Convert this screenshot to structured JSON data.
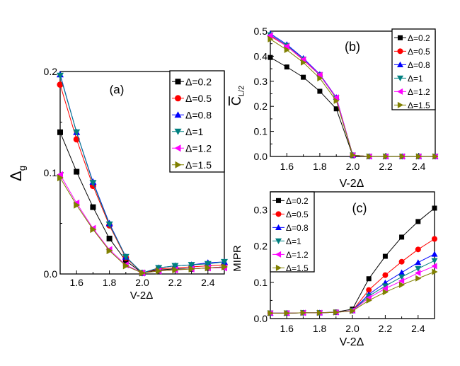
{
  "chart_data": [
    {
      "type": "line",
      "panel_label": "(a)",
      "xlabel": "V-2Δ",
      "ylabel": "Δ",
      "ylabel_sub": "g",
      "xlim": [
        1.5,
        2.5
      ],
      "ylim": [
        0,
        0.2
      ],
      "xticks": [
        "1.6",
        "1.8",
        "2.0",
        "2.2",
        "2.4"
      ],
      "yticks": [
        "0.0",
        "0.1",
        "0.2"
      ],
      "legend_position": "top-right",
      "x": [
        1.5,
        1.6,
        1.7,
        1.8,
        1.9,
        2.0,
        2.1,
        2.2,
        2.3,
        2.4,
        2.5
      ],
      "series": [
        {
          "name": "Δ=0.2",
          "color": "#000000",
          "marker": "square",
          "values": [
            0.14,
            0.101,
            0.066,
            0.035,
            0.013,
            0.001,
            0.004,
            0.005,
            0.005,
            0.006,
            0.007
          ]
        },
        {
          "name": "Δ=0.5",
          "color": "#ff0000",
          "marker": "circle",
          "values": [
            0.187,
            0.133,
            0.087,
            0.048,
            0.016,
            0.001,
            0.005,
            0.006,
            0.007,
            0.008,
            0.009
          ]
        },
        {
          "name": "Δ=0.8",
          "color": "#0000ff",
          "marker": "triangle-up",
          "values": [
            0.197,
            0.14,
            0.091,
            0.05,
            0.017,
            0.001,
            0.006,
            0.008,
            0.009,
            0.011,
            0.012
          ]
        },
        {
          "name": "Δ=1",
          "color": "#008080",
          "marker": "triangle-down",
          "values": [
            0.196,
            0.14,
            0.09,
            0.049,
            0.017,
            0.001,
            0.006,
            0.008,
            0.009,
            0.01,
            0.012
          ]
        },
        {
          "name": "Δ=1.2",
          "color": "#ff00ff",
          "marker": "triangle-left",
          "values": [
            0.098,
            0.07,
            0.045,
            0.024,
            0.009,
            0.001,
            0.003,
            0.004,
            0.005,
            0.006,
            0.006
          ]
        },
        {
          "name": "Δ=1.5",
          "color": "#808000",
          "marker": "triangle-right",
          "values": [
            0.095,
            0.068,
            0.044,
            0.023,
            0.008,
            0.001,
            0.003,
            0.004,
            0.005,
            0.006,
            0.007
          ]
        }
      ]
    },
    {
      "type": "line",
      "panel_label": "(b)",
      "xlabel": "V-2Δ",
      "ylabel": "C",
      "ylabel_sub": "L/2",
      "xlim": [
        1.5,
        2.5
      ],
      "ylim": [
        0,
        0.5
      ],
      "xticks": [
        "1.6",
        "1.8",
        "2.0",
        "2.2",
        "2.4"
      ],
      "yticks": [
        "0.0",
        "0.1",
        "0.2",
        "0.3",
        "0.4",
        "0.5"
      ],
      "legend_position": "top-right",
      "x": [
        1.5,
        1.6,
        1.7,
        1.8,
        1.9,
        2.0,
        2.1,
        2.2,
        2.3,
        2.4,
        2.5
      ],
      "series": [
        {
          "name": "Δ=0.2",
          "color": "#000000",
          "marker": "square",
          "values": [
            0.395,
            0.357,
            0.316,
            0.26,
            0.19,
            0.003,
            0,
            0,
            0,
            0,
            0
          ]
        },
        {
          "name": "Δ=0.5",
          "color": "#ff0000",
          "marker": "circle",
          "values": [
            0.48,
            0.44,
            0.385,
            0.325,
            0.232,
            0.005,
            0,
            0,
            0,
            0,
            0
          ]
        },
        {
          "name": "Δ=0.8",
          "color": "#0000ff",
          "marker": "triangle-up",
          "values": [
            0.49,
            0.447,
            0.392,
            0.328,
            0.236,
            0.005,
            0,
            0,
            0,
            0,
            0
          ]
        },
        {
          "name": "Δ=1",
          "color": "#008080",
          "marker": "triangle-down",
          "values": [
            0.485,
            0.443,
            0.388,
            0.325,
            0.233,
            0.005,
            0,
            0,
            0,
            0,
            0
          ]
        },
        {
          "name": "Δ=1.2",
          "color": "#ff00ff",
          "marker": "triangle-left",
          "values": [
            0.483,
            0.44,
            0.387,
            0.326,
            0.235,
            0.005,
            0,
            0,
            0,
            0,
            0
          ]
        },
        {
          "name": "Δ=1.5",
          "color": "#808000",
          "marker": "triangle-right",
          "values": [
            0.468,
            0.425,
            0.375,
            0.312,
            0.222,
            0.005,
            0,
            0,
            0,
            0,
            0
          ]
        }
      ]
    },
    {
      "type": "line",
      "panel_label": "(c)",
      "xlabel": "V-2Δ",
      "ylabel": "MIPR",
      "ylabel_sub": "",
      "xlim": [
        1.5,
        2.5
      ],
      "ylim": [
        0,
        0.35
      ],
      "xticks": [
        "1.6",
        "1.8",
        "2.0",
        "2.2",
        "2.4"
      ],
      "yticks": [
        "0.0",
        "0.1",
        "0.2",
        "0.3"
      ],
      "legend_position": "top-left",
      "x": [
        1.5,
        1.6,
        1.7,
        1.8,
        1.9,
        2.0,
        2.1,
        2.2,
        2.3,
        2.4,
        2.5
      ],
      "series": [
        {
          "name": "Δ=0.2",
          "color": "#000000",
          "marker": "square",
          "values": [
            0.015,
            0.015,
            0.016,
            0.016,
            0.018,
            0.026,
            0.11,
            0.172,
            0.225,
            0.268,
            0.305
          ]
        },
        {
          "name": "Δ=0.5",
          "color": "#ff0000",
          "marker": "circle",
          "values": [
            0.015,
            0.015,
            0.016,
            0.016,
            0.017,
            0.022,
            0.079,
            0.12,
            0.157,
            0.191,
            0.22
          ]
        },
        {
          "name": "Δ=0.8",
          "color": "#0000ff",
          "marker": "triangle-up",
          "values": [
            0.015,
            0.015,
            0.016,
            0.016,
            0.017,
            0.022,
            0.067,
            0.099,
            0.127,
            0.155,
            0.178
          ]
        },
        {
          "name": "Δ=1",
          "color": "#008080",
          "marker": "triangle-down",
          "values": [
            0.015,
            0.015,
            0.016,
            0.016,
            0.017,
            0.022,
            0.062,
            0.09,
            0.115,
            0.138,
            0.16
          ]
        },
        {
          "name": "Δ=1.2",
          "color": "#ff00ff",
          "marker": "triangle-left",
          "values": [
            0.015,
            0.015,
            0.016,
            0.016,
            0.017,
            0.022,
            0.057,
            0.083,
            0.104,
            0.126,
            0.145
          ]
        },
        {
          "name": "Δ=1.5",
          "color": "#808000",
          "marker": "triangle-right",
          "values": [
            0.015,
            0.015,
            0.016,
            0.016,
            0.017,
            0.021,
            0.05,
            0.073,
            0.093,
            0.111,
            0.129
          ]
        }
      ]
    }
  ]
}
